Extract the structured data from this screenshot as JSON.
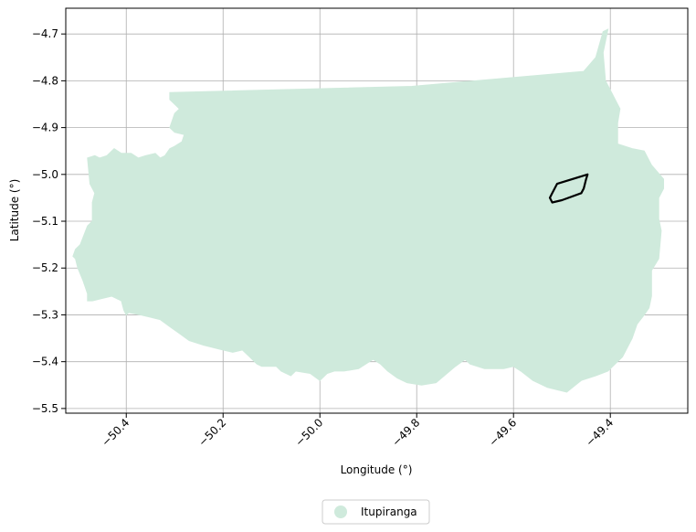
{
  "chart_data": {
    "type": "map",
    "xlabel": "Longitude (°)",
    "ylabel": "Latitude (°)",
    "xlim": [
      -50.525,
      -49.24
    ],
    "ylim": [
      -5.51,
      -4.645
    ],
    "x_ticks": [
      -50.4,
      -50.2,
      -50.0,
      -49.8,
      -49.6,
      -49.4
    ],
    "x_tick_labels": [
      "−50.4",
      "−50.2",
      "−50.0",
      "−49.8",
      "−49.6",
      "−49.4"
    ],
    "y_ticks": [
      -4.7,
      -4.8,
      -4.9,
      -5.0,
      -5.1,
      -5.2,
      -5.3,
      -5.4,
      -5.5
    ],
    "y_tick_labels": [
      "−4.7",
      "−4.8",
      "−4.9",
      "−5.0",
      "−5.1",
      "−5.2",
      "−5.3",
      "−5.4",
      "−5.5"
    ],
    "grid": true,
    "legend_position": "bottom-center",
    "legend": [
      {
        "name": "Itupiranga",
        "color": "#cfeadc"
      }
    ],
    "region": {
      "name": "Itupiranga",
      "fill": "#cfeadc",
      "outline": [
        [
          -50.31,
          -4.825
        ],
        [
          -49.81,
          -4.812
        ],
        [
          -49.455,
          -4.78
        ],
        [
          -49.43,
          -4.75
        ],
        [
          -49.415,
          -4.695
        ],
        [
          -49.405,
          -4.69
        ],
        [
          -49.415,
          -4.74
        ],
        [
          -49.41,
          -4.8
        ],
        [
          -49.38,
          -4.86
        ],
        [
          -49.385,
          -4.89
        ],
        [
          -49.385,
          -4.935
        ],
        [
          -49.355,
          -4.945
        ],
        [
          -49.33,
          -4.95
        ],
        [
          -49.315,
          -4.98
        ],
        [
          -49.29,
          -5.01
        ],
        [
          -49.29,
          -5.03
        ],
        [
          -49.3,
          -5.05
        ],
        [
          -49.3,
          -5.095
        ],
        [
          -49.295,
          -5.12
        ],
        [
          -49.3,
          -5.18
        ],
        [
          -49.315,
          -5.205
        ],
        [
          -49.315,
          -5.26
        ],
        [
          -49.32,
          -5.285
        ],
        [
          -49.33,
          -5.3
        ],
        [
          -49.345,
          -5.32
        ],
        [
          -49.355,
          -5.35
        ],
        [
          -49.365,
          -5.37
        ],
        [
          -49.375,
          -5.39
        ],
        [
          -49.39,
          -5.405
        ],
        [
          -49.405,
          -5.42
        ],
        [
          -49.43,
          -5.43
        ],
        [
          -49.46,
          -5.44
        ],
        [
          -49.49,
          -5.465
        ],
        [
          -49.51,
          -5.46
        ],
        [
          -49.53,
          -5.455
        ],
        [
          -49.56,
          -5.44
        ],
        [
          -49.585,
          -5.42
        ],
        [
          -49.6,
          -5.41
        ],
        [
          -49.62,
          -5.415
        ],
        [
          -49.66,
          -5.415
        ],
        [
          -49.69,
          -5.405
        ],
        [
          -49.7,
          -5.395
        ],
        [
          -49.72,
          -5.41
        ],
        [
          -49.76,
          -5.445
        ],
        [
          -49.79,
          -5.45
        ],
        [
          -49.82,
          -5.445
        ],
        [
          -49.84,
          -5.435
        ],
        [
          -49.86,
          -5.42
        ],
        [
          -49.875,
          -5.405
        ],
        [
          -49.89,
          -5.395
        ],
        [
          -49.92,
          -5.415
        ],
        [
          -49.95,
          -5.42
        ],
        [
          -49.97,
          -5.42
        ],
        [
          -49.985,
          -5.425
        ],
        [
          -50.0,
          -5.44
        ],
        [
          -50.02,
          -5.425
        ],
        [
          -50.05,
          -5.42
        ],
        [
          -50.06,
          -5.43
        ],
        [
          -50.08,
          -5.42
        ],
        [
          -50.09,
          -5.41
        ],
        [
          -50.12,
          -5.41
        ],
        [
          -50.13,
          -5.405
        ],
        [
          -50.145,
          -5.39
        ],
        [
          -50.16,
          -5.375
        ],
        [
          -50.18,
          -5.38
        ],
        [
          -50.2,
          -5.375
        ],
        [
          -50.22,
          -5.37
        ],
        [
          -50.24,
          -5.365
        ],
        [
          -50.27,
          -5.355
        ],
        [
          -50.29,
          -5.34
        ],
        [
          -50.31,
          -5.325
        ],
        [
          -50.33,
          -5.31
        ],
        [
          -50.35,
          -5.305
        ],
        [
          -50.37,
          -5.3
        ],
        [
          -50.395,
          -5.295
        ],
        [
          -50.4,
          -5.3
        ],
        [
          -50.405,
          -5.29
        ],
        [
          -50.41,
          -5.27
        ],
        [
          -50.43,
          -5.26
        ],
        [
          -50.45,
          -5.265
        ],
        [
          -50.47,
          -5.27
        ],
        [
          -50.48,
          -5.27
        ],
        [
          -50.48,
          -5.255
        ],
        [
          -50.485,
          -5.24
        ],
        [
          -50.49,
          -5.225
        ],
        [
          -50.5,
          -5.2
        ],
        [
          -50.505,
          -5.18
        ],
        [
          -50.51,
          -5.175
        ],
        [
          -50.505,
          -5.16
        ],
        [
          -50.495,
          -5.15
        ],
        [
          -50.48,
          -5.11
        ],
        [
          -50.47,
          -5.1
        ],
        [
          -50.47,
          -5.06
        ],
        [
          -50.465,
          -5.04
        ],
        [
          -50.475,
          -5.02
        ],
        [
          -50.48,
          -4.965
        ],
        [
          -50.465,
          -4.96
        ],
        [
          -50.455,
          -4.965
        ],
        [
          -50.44,
          -4.96
        ],
        [
          -50.425,
          -4.945
        ],
        [
          -50.41,
          -4.955
        ],
        [
          -50.39,
          -4.955
        ],
        [
          -50.375,
          -4.965
        ],
        [
          -50.36,
          -4.96
        ],
        [
          -50.34,
          -4.955
        ],
        [
          -50.33,
          -4.965
        ],
        [
          -50.32,
          -4.96
        ],
        [
          -50.31,
          -4.945
        ],
        [
          -50.3,
          -4.94
        ],
        [
          -50.285,
          -4.93
        ],
        [
          -50.28,
          -4.915
        ],
        [
          -50.3,
          -4.91
        ],
        [
          -50.31,
          -4.9
        ],
        [
          -50.3,
          -4.87
        ],
        [
          -50.29,
          -4.86
        ],
        [
          -50.31,
          -4.84
        ]
      ]
    },
    "highlight": {
      "stroke": "#000000",
      "outline": [
        [
          -49.447,
          -5.0
        ],
        [
          -49.45,
          -5.01
        ],
        [
          -49.455,
          -5.03
        ],
        [
          -49.46,
          -5.04
        ],
        [
          -49.5,
          -5.055
        ],
        [
          -49.52,
          -5.06
        ],
        [
          -49.525,
          -5.05
        ],
        [
          -49.52,
          -5.04
        ],
        [
          -49.51,
          -5.02
        ]
      ]
    }
  }
}
